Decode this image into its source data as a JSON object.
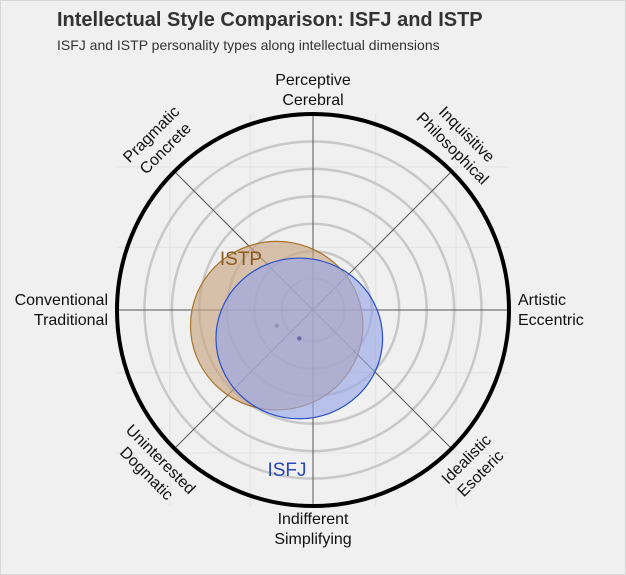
{
  "title": "Intellectual Style Comparison: ISFJ and ISTP",
  "subtitle": "ISFJ and ISTP personality types along intellectual dimensions",
  "chart_data": {
    "type": "scatter",
    "axes": [
      {
        "name": "top",
        "lines": [
          "Perceptive",
          "Cerebral"
        ]
      },
      {
        "name": "top-right",
        "lines": [
          "Inquisitive",
          "Philosophical"
        ]
      },
      {
        "name": "right",
        "lines": [
          "Artistic",
          "Eccentric"
        ]
      },
      {
        "name": "bottom-right",
        "lines": [
          "Idealistic",
          "Esoteric"
        ]
      },
      {
        "name": "bottom",
        "lines": [
          "Indifferent",
          "Simplifying"
        ]
      },
      {
        "name": "bottom-left",
        "lines": [
          "Uninterested",
          "Dogmatic"
        ]
      },
      {
        "name": "left",
        "lines": [
          "Conventional",
          "Traditional"
        ]
      },
      {
        "name": "top-left",
        "lines": [
          "Pragmatic",
          "Concrete"
        ]
      }
    ],
    "ring_count": 6,
    "series": [
      {
        "name": "ISTP",
        "x": -0.37,
        "y": -0.16,
        "rx": 0.88,
        "ry": 0.86,
        "fill": "#c7a682",
        "stroke": "#a8742a",
        "label_color": "#8a5a20",
        "dot": "#8b6a4a"
      },
      {
        "name": "ISFJ",
        "x": -0.14,
        "y": -0.29,
        "rx": 0.85,
        "ry": 0.82,
        "fill": "#9aa7e6",
        "stroke": "#2a4fc8",
        "label_color": "#2a47b8",
        "dot": "#6a6aa8"
      }
    ],
    "colors": {
      "outer_ring": "#000000",
      "grid": "#c8c8c8",
      "axis_line": "#555555"
    }
  }
}
